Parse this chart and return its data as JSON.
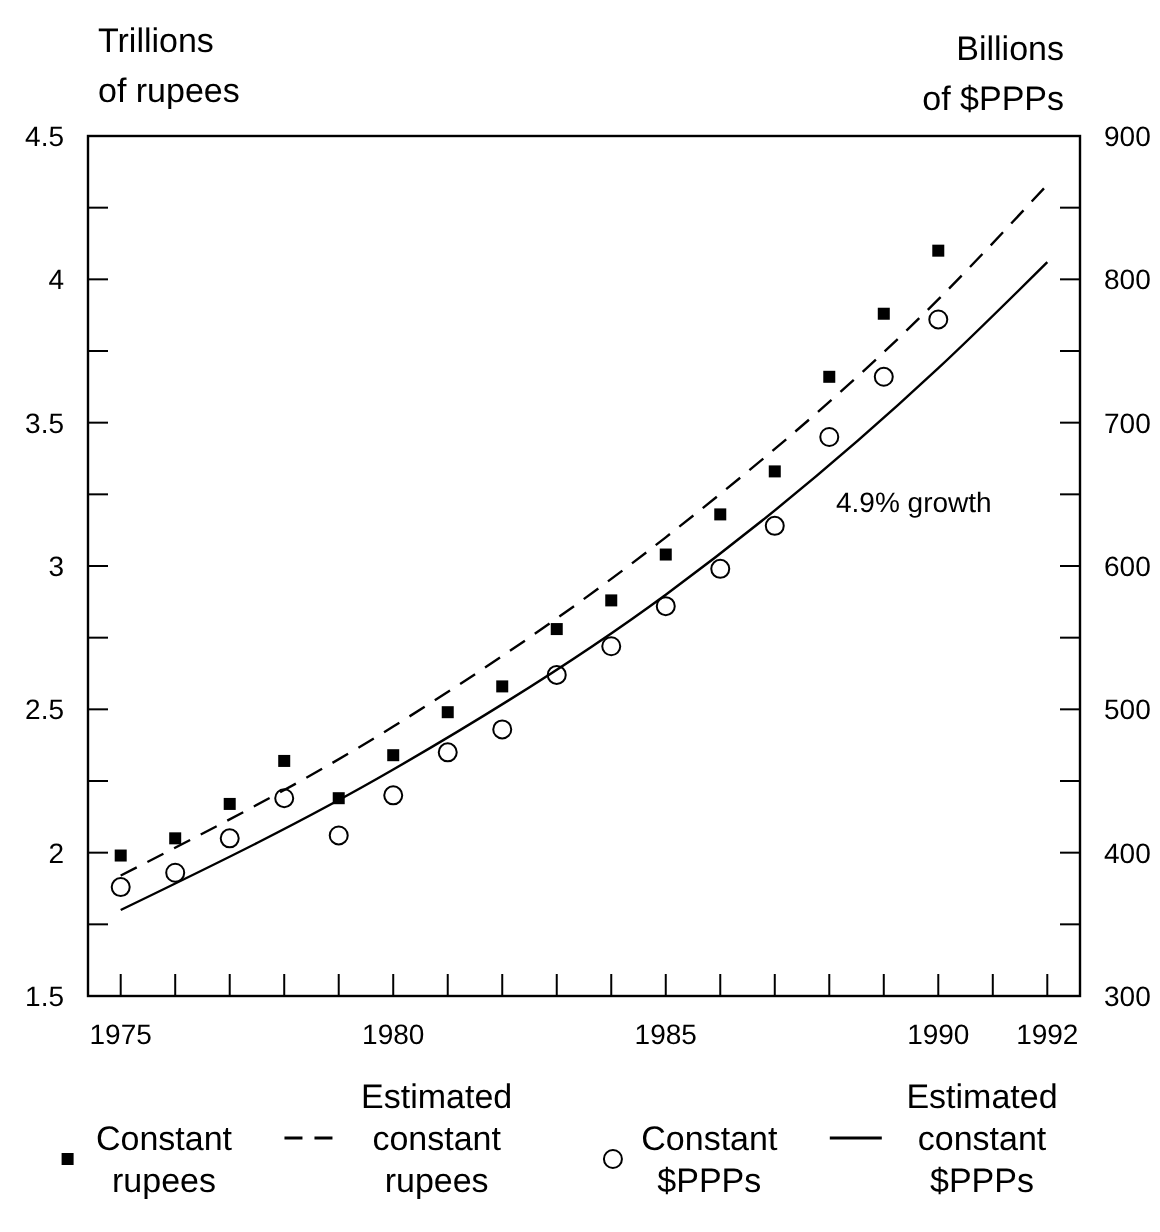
{
  "chart_data": {
    "type": "scatter",
    "ylabel": "Trillions of rupees",
    "y2label": "Billions of $PPPs",
    "xlim": [
      1974.4,
      1992.6
    ],
    "xticks": [
      1975,
      {
        "value": 1976,
        "label": null
      },
      {
        "value": 1977,
        "label": null
      },
      {
        "value": 1978,
        "label": null
      },
      {
        "value": 1979,
        "label": null
      },
      1980,
      {
        "value": 1981,
        "label": null
      },
      {
        "value": 1982,
        "label": null
      },
      {
        "value": 1983,
        "label": null
      },
      {
        "value": 1984,
        "label": null
      },
      1985,
      {
        "value": 1986,
        "label": null
      },
      {
        "value": 1987,
        "label": null
      },
      {
        "value": 1988,
        "label": null
      },
      {
        "value": 1989,
        "label": null
      },
      1990,
      {
        "value": 1991,
        "label": null
      },
      1992
    ],
    "ylim": [
      1.5,
      4.5
    ],
    "yticks": [
      1.5,
      {
        "value": 1.75,
        "label": null
      },
      2,
      {
        "value": 2.25,
        "label": null
      },
      2.5,
      {
        "value": 2.75,
        "label": null
      },
      3,
      {
        "value": 3.25,
        "label": null
      },
      3.5,
      {
        "value": 3.75,
        "label": null
      },
      4,
      {
        "value": 4.25,
        "label": null
      },
      4.5
    ],
    "y2lim": [
      300,
      900
    ],
    "y2ticks": [
      300,
      {
        "value": 350,
        "label": null
      },
      400,
      {
        "value": 450,
        "label": null
      },
      500,
      {
        "value": 550,
        "label": null
      },
      600,
      {
        "value": 650,
        "label": null
      },
      700,
      {
        "value": 750,
        "label": null
      },
      800,
      {
        "value": 850,
        "label": null
      },
      900
    ],
    "x": [
      1975,
      1976,
      1977,
      1978,
      1979,
      1980,
      1981,
      1982,
      1983,
      1984,
      1985,
      1986,
      1987,
      1988,
      1989,
      1990
    ],
    "series": [
      {
        "name": "Constant rupees",
        "type": "scatter",
        "marker": "square",
        "color": "#000000",
        "values": [
          1.99,
          2.05,
          2.17,
          2.32,
          2.19,
          2.34,
          2.49,
          2.58,
          2.78,
          2.88,
          3.04,
          3.18,
          3.33,
          3.66,
          3.88,
          4.1
        ]
      },
      {
        "name": "Estimated constant rupees",
        "type": "line",
        "marker": "none",
        "line_style": "dashed",
        "color": "#000000",
        "x": [
          1975,
          1980,
          1985,
          1990,
          1992
        ],
        "values": [
          1.92,
          2.44,
          3.1,
          3.93,
          4.33
        ]
      },
      {
        "name": "Constant $PPPs",
        "type": "scatter",
        "marker": "circle",
        "axis": "y2",
        "color": "#000000",
        "values": [
          376,
          386,
          410,
          438,
          412,
          440,
          470,
          486,
          524,
          544,
          572,
          598,
          628,
          690,
          732,
          772
        ]
      },
      {
        "name": "Estimated constant $PPPs",
        "type": "line",
        "marker": "none",
        "line_style": "solid",
        "axis": "y2",
        "color": "#000000",
        "x": [
          1975,
          1980,
          1985,
          1990,
          1992
        ],
        "values": [
          360,
          458,
          580,
          738,
          812
        ]
      }
    ],
    "annotations": [
      "4.9% growth"
    ],
    "legend": "bottom",
    "grid": false
  }
}
